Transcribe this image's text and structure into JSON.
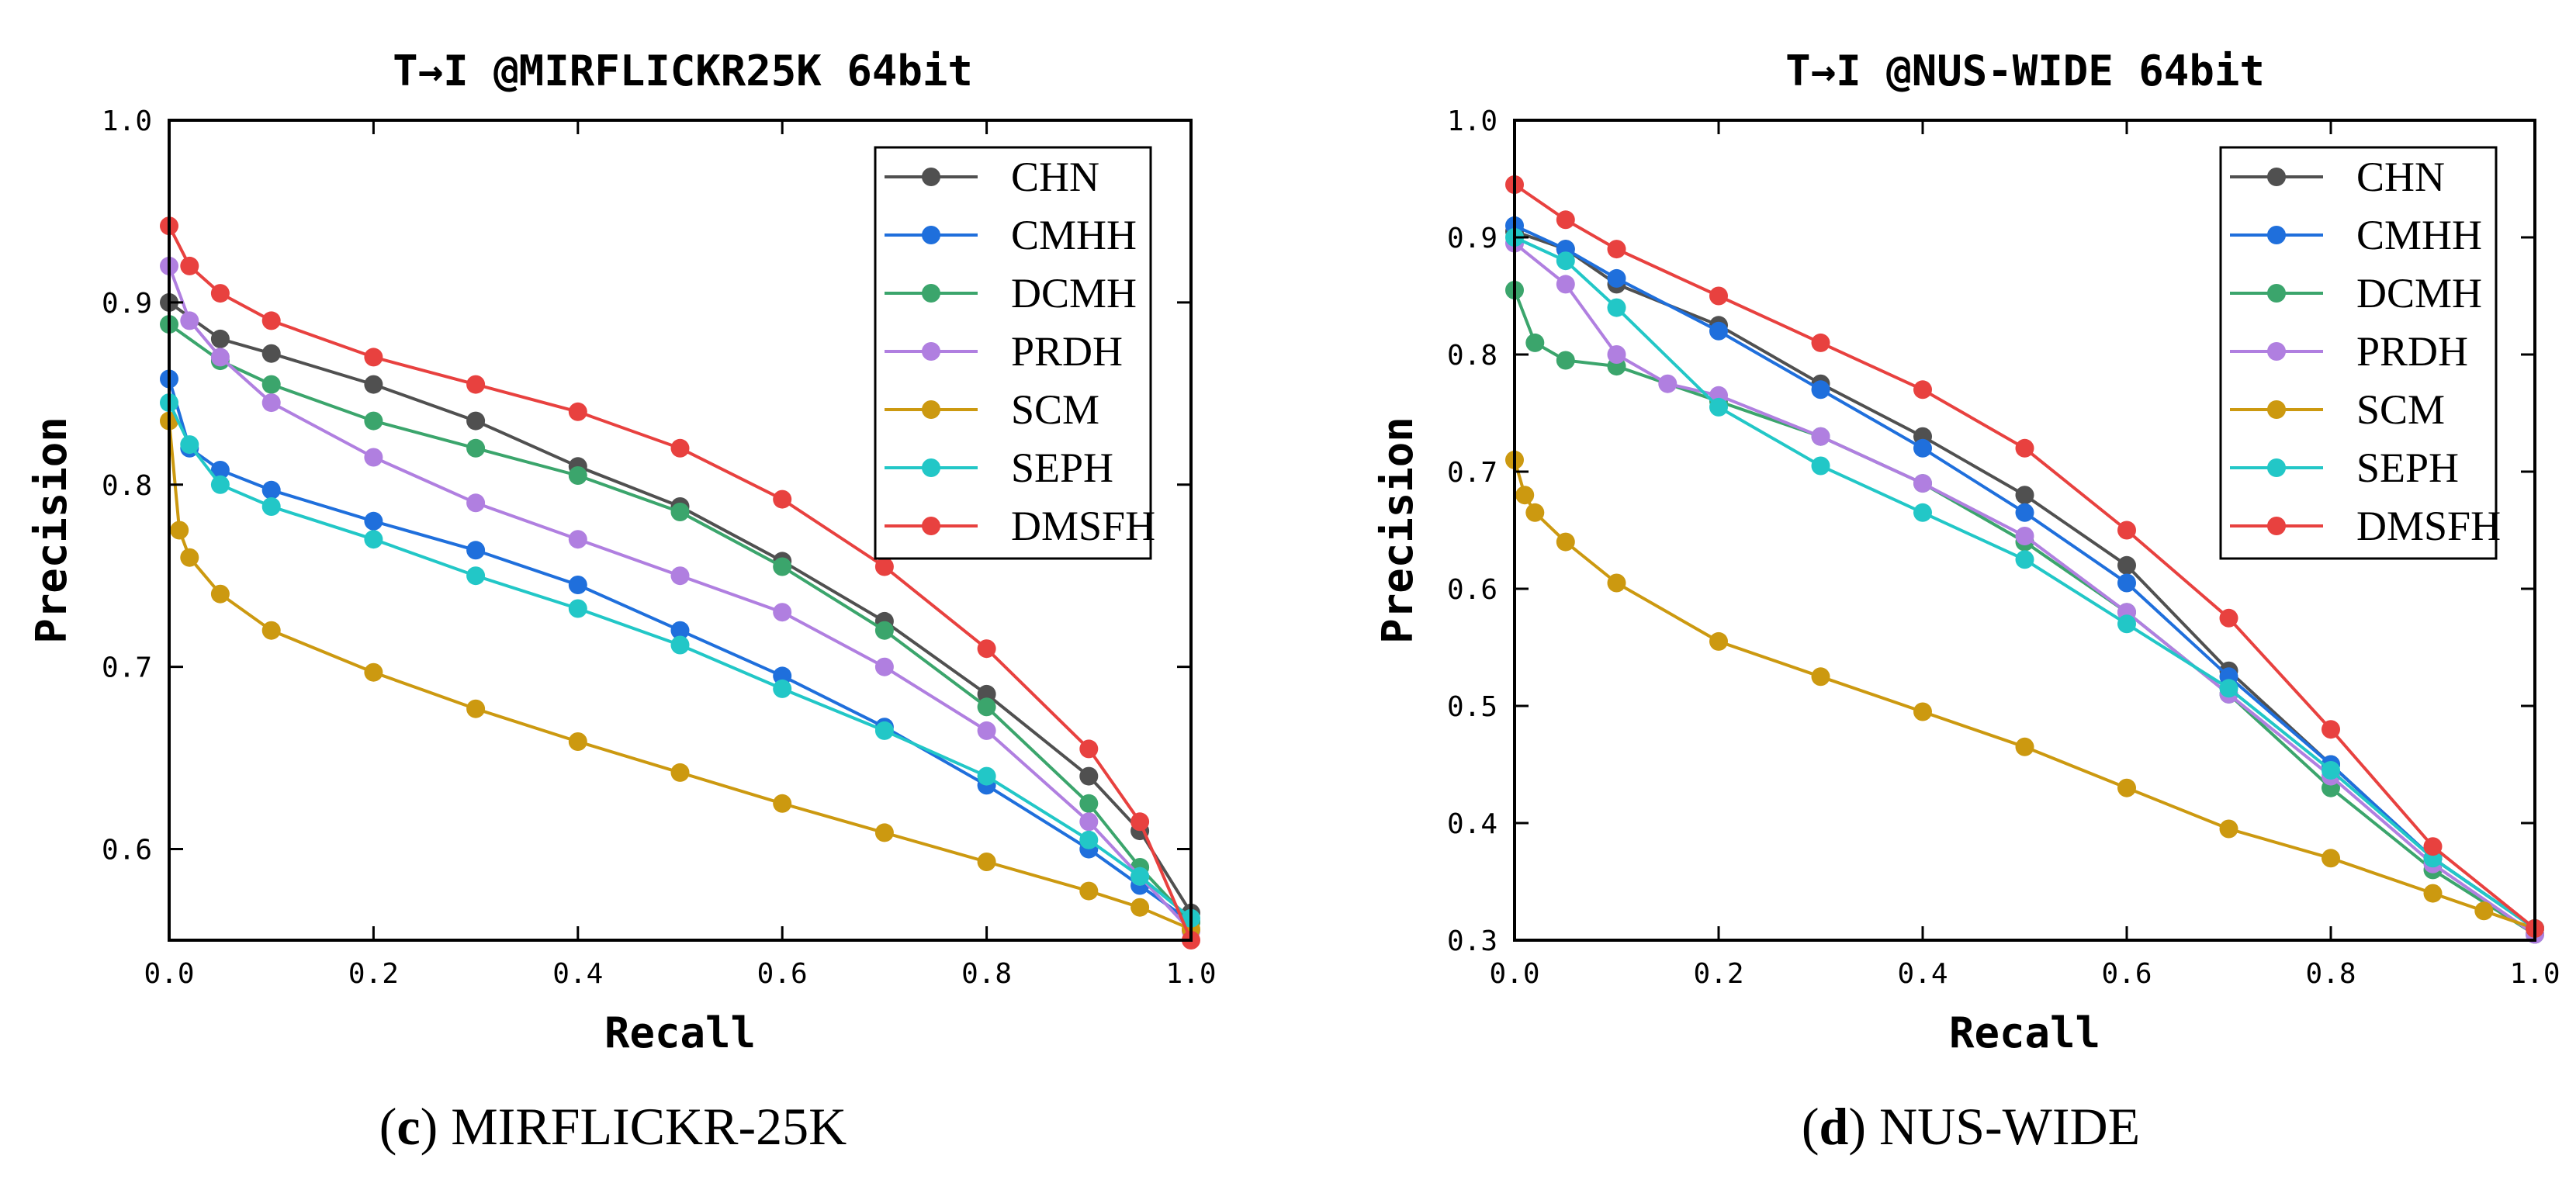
{
  "captions": [
    {
      "letter": "c",
      "text": " MIRFLICKR-25K"
    },
    {
      "letter": "d",
      "text": " NUS-WIDE"
    }
  ],
  "chart_data": [
    {
      "type": "line",
      "title": "T→I @MIRFLICKR25K 64bit",
      "xlabel": "Recall",
      "ylabel": "Precision",
      "xlim": [
        0.0,
        1.0
      ],
      "ylim": [
        0.55,
        1.0
      ],
      "xticks": [
        0.0,
        0.2,
        0.4,
        0.6,
        0.8,
        1.0
      ],
      "xtick_labels": [
        "0.0",
        "0.2",
        "0.4",
        "0.6",
        "0.8",
        "1.0"
      ],
      "yticks": [
        0.6,
        0.7,
        0.8,
        0.9,
        1.0
      ],
      "ytick_labels": [
        "0.6",
        "0.7",
        "0.8",
        "0.9",
        "1.0"
      ],
      "legend_position": "top-right",
      "series": [
        {
          "name": "CHN",
          "color": "#505050",
          "x": [
            0,
            0.05,
            0.1,
            0.2,
            0.3,
            0.4,
            0.5,
            0.6,
            0.7,
            0.8,
            0.9,
            0.95,
            1.0
          ],
          "y": [
            0.9,
            0.88,
            0.872,
            0.855,
            0.835,
            0.81,
            0.788,
            0.758,
            0.725,
            0.685,
            0.64,
            0.61,
            0.565
          ]
        },
        {
          "name": "CMHH",
          "color": "#1f6fdc",
          "x": [
            0,
            0.02,
            0.05,
            0.1,
            0.2,
            0.3,
            0.4,
            0.5,
            0.6,
            0.7,
            0.8,
            0.9,
            0.95,
            1.0
          ],
          "y": [
            0.858,
            0.82,
            0.808,
            0.797,
            0.78,
            0.764,
            0.745,
            0.72,
            0.695,
            0.667,
            0.635,
            0.6,
            0.58,
            0.56
          ]
        },
        {
          "name": "DCMH",
          "color": "#3ba56c",
          "x": [
            0,
            0.05,
            0.1,
            0.2,
            0.3,
            0.4,
            0.5,
            0.6,
            0.7,
            0.8,
            0.9,
            0.95,
            1.0
          ],
          "y": [
            0.888,
            0.868,
            0.855,
            0.835,
            0.82,
            0.805,
            0.785,
            0.755,
            0.72,
            0.678,
            0.625,
            0.59,
            0.56
          ]
        },
        {
          "name": "PRDH",
          "color": "#b07fe0",
          "x": [
            0,
            0.02,
            0.05,
            0.1,
            0.2,
            0.3,
            0.4,
            0.5,
            0.6,
            0.7,
            0.8,
            0.9,
            0.95,
            1.0
          ],
          "y": [
            0.92,
            0.89,
            0.87,
            0.845,
            0.815,
            0.79,
            0.77,
            0.75,
            0.73,
            0.7,
            0.665,
            0.615,
            0.585,
            0.555
          ]
        },
        {
          "name": "SCM",
          "color": "#cc9910",
          "x": [
            0,
            0.01,
            0.02,
            0.05,
            0.1,
            0.2,
            0.3,
            0.4,
            0.5,
            0.6,
            0.7,
            0.8,
            0.9,
            0.95,
            1.0
          ],
          "y": [
            0.835,
            0.775,
            0.76,
            0.74,
            0.72,
            0.697,
            0.677,
            0.659,
            0.642,
            0.625,
            0.609,
            0.593,
            0.577,
            0.568,
            0.556
          ]
        },
        {
          "name": "SEPH",
          "color": "#22c7c7",
          "x": [
            0,
            0.02,
            0.05,
            0.1,
            0.2,
            0.3,
            0.4,
            0.5,
            0.6,
            0.7,
            0.8,
            0.9,
            0.95,
            1.0
          ],
          "y": [
            0.845,
            0.822,
            0.8,
            0.788,
            0.77,
            0.75,
            0.732,
            0.712,
            0.688,
            0.665,
            0.64,
            0.605,
            0.585,
            0.562
          ]
        },
        {
          "name": "DMSFH",
          "color": "#e8413f",
          "x": [
            0,
            0.02,
            0.05,
            0.1,
            0.2,
            0.3,
            0.4,
            0.5,
            0.6,
            0.7,
            0.8,
            0.9,
            0.95,
            1.0
          ],
          "y": [
            0.942,
            0.92,
            0.905,
            0.89,
            0.87,
            0.855,
            0.84,
            0.82,
            0.792,
            0.755,
            0.71,
            0.655,
            0.615,
            0.55
          ]
        }
      ]
    },
    {
      "type": "line",
      "title": "T→I @NUS-WIDE 64bit",
      "xlabel": "Recall",
      "ylabel": "Precision",
      "xlim": [
        0.0,
        1.0
      ],
      "ylim": [
        0.3,
        1.0
      ],
      "xticks": [
        0.0,
        0.2,
        0.4,
        0.6,
        0.8,
        1.0
      ],
      "xtick_labels": [
        "0.0",
        "0.2",
        "0.4",
        "0.6",
        "0.8",
        "1.0"
      ],
      "yticks": [
        0.3,
        0.4,
        0.5,
        0.6,
        0.7,
        0.8,
        0.9,
        1.0
      ],
      "ytick_labels": [
        "0.3",
        "0.4",
        "0.5",
        "0.6",
        "0.7",
        "0.8",
        "0.9",
        "1.0"
      ],
      "legend_position": "top-right",
      "series": [
        {
          "name": "CHN",
          "color": "#505050",
          "x": [
            0,
            0.05,
            0.1,
            0.2,
            0.3,
            0.4,
            0.5,
            0.6,
            0.7,
            0.8,
            0.9,
            1.0
          ],
          "y": [
            0.905,
            0.89,
            0.86,
            0.825,
            0.775,
            0.73,
            0.68,
            0.62,
            0.53,
            0.45,
            0.37,
            0.31
          ]
        },
        {
          "name": "CMHH",
          "color": "#1f6fdc",
          "x": [
            0,
            0.05,
            0.1,
            0.2,
            0.3,
            0.4,
            0.5,
            0.6,
            0.7,
            0.8,
            0.9,
            1.0
          ],
          "y": [
            0.91,
            0.89,
            0.865,
            0.82,
            0.77,
            0.72,
            0.665,
            0.605,
            0.525,
            0.45,
            0.37,
            0.31
          ]
        },
        {
          "name": "DCMH",
          "color": "#3ba56c",
          "x": [
            0,
            0.02,
            0.05,
            0.1,
            0.2,
            0.3,
            0.4,
            0.5,
            0.6,
            0.7,
            0.8,
            0.9,
            1.0
          ],
          "y": [
            0.855,
            0.81,
            0.795,
            0.79,
            0.76,
            0.73,
            0.69,
            0.64,
            0.58,
            0.51,
            0.43,
            0.36,
            0.305
          ]
        },
        {
          "name": "PRDH",
          "color": "#b07fe0",
          "x": [
            0,
            0.05,
            0.1,
            0.15,
            0.2,
            0.3,
            0.4,
            0.5,
            0.6,
            0.7,
            0.8,
            0.9,
            1.0
          ],
          "y": [
            0.895,
            0.86,
            0.8,
            0.775,
            0.765,
            0.73,
            0.69,
            0.645,
            0.58,
            0.51,
            0.44,
            0.365,
            0.305
          ]
        },
        {
          "name": "SCM",
          "color": "#cc9910",
          "x": [
            0,
            0.01,
            0.02,
            0.05,
            0.1,
            0.2,
            0.3,
            0.4,
            0.5,
            0.6,
            0.7,
            0.8,
            0.9,
            0.95,
            1.0
          ],
          "y": [
            0.71,
            0.68,
            0.665,
            0.64,
            0.605,
            0.555,
            0.525,
            0.495,
            0.465,
            0.43,
            0.395,
            0.37,
            0.34,
            0.325,
            0.31
          ]
        },
        {
          "name": "SEPH",
          "color": "#22c7c7",
          "x": [
            0,
            0.05,
            0.1,
            0.2,
            0.3,
            0.4,
            0.5,
            0.6,
            0.7,
            0.8,
            0.9,
            1.0
          ],
          "y": [
            0.9,
            0.88,
            0.84,
            0.755,
            0.705,
            0.665,
            0.625,
            0.57,
            0.515,
            0.445,
            0.37,
            0.31
          ]
        },
        {
          "name": "DMSFH",
          "color": "#e8413f",
          "x": [
            0,
            0.05,
            0.1,
            0.2,
            0.3,
            0.4,
            0.5,
            0.6,
            0.7,
            0.8,
            0.9,
            1.0
          ],
          "y": [
            0.945,
            0.915,
            0.89,
            0.85,
            0.81,
            0.77,
            0.72,
            0.65,
            0.575,
            0.48,
            0.38,
            0.31
          ]
        }
      ]
    }
  ]
}
